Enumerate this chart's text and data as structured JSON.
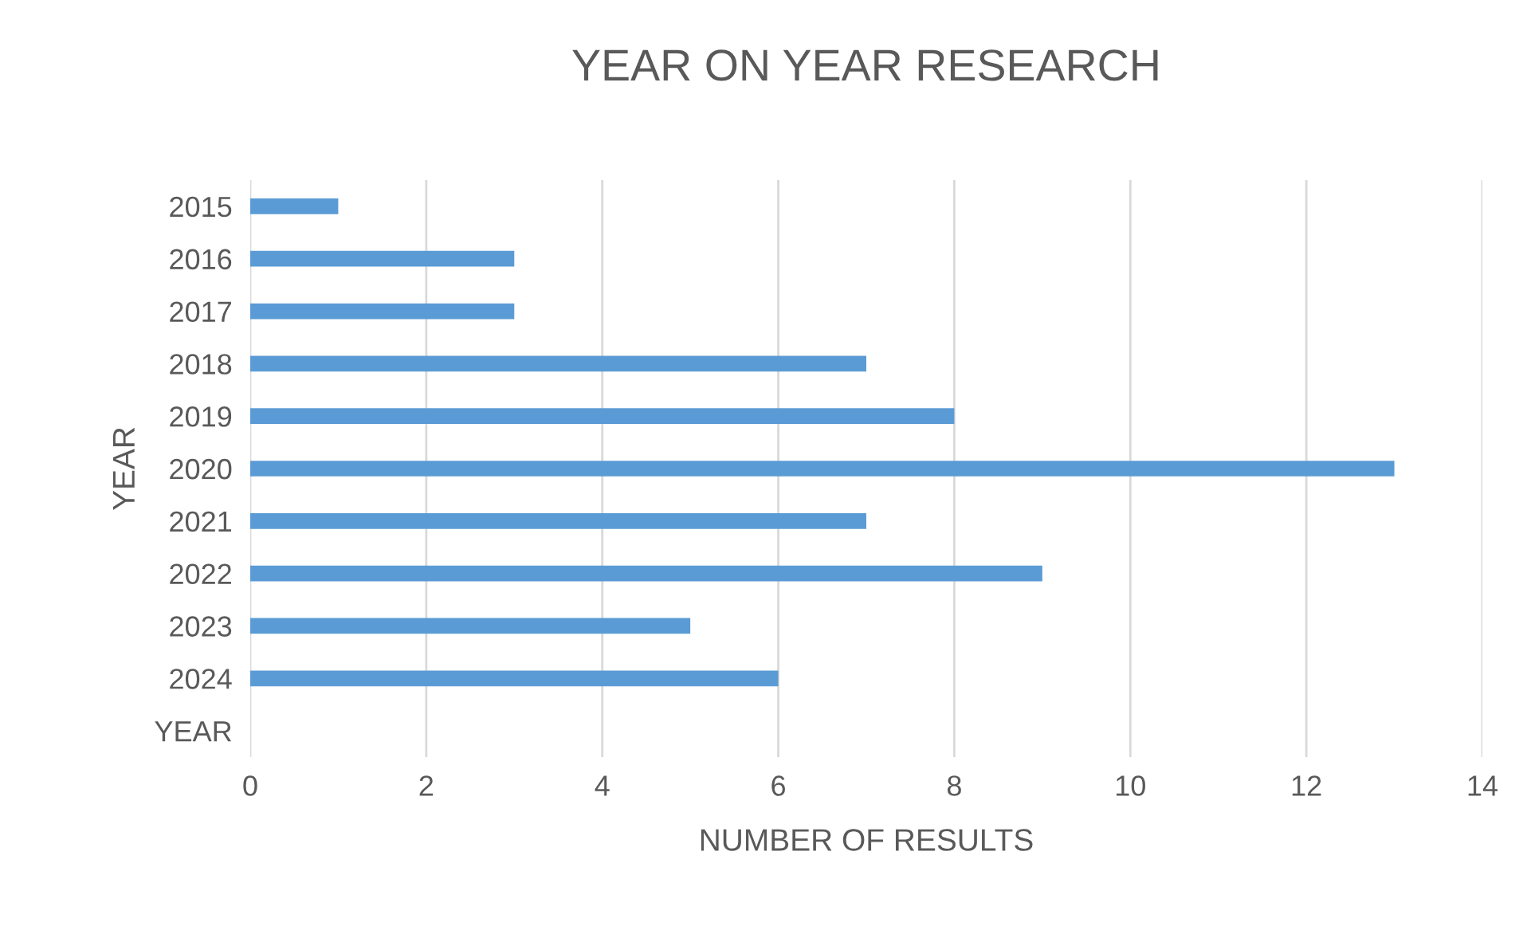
{
  "chart_data": {
    "type": "bar",
    "orientation": "horizontal",
    "title": "YEAR ON YEAR RESEARCH",
    "xlabel": "NUMBER OF RESULTS",
    "ylabel": "YEAR",
    "categories": [
      "2015",
      "2016",
      "2017",
      "2018",
      "2019",
      "2020",
      "2021",
      "2022",
      "2023",
      "2024",
      "YEAR"
    ],
    "values": [
      1,
      3,
      3,
      7,
      8,
      13,
      7,
      9,
      5,
      6,
      null
    ],
    "color": "#5b9bd5",
    "xlim": [
      0,
      14
    ],
    "xticks": [
      0,
      2,
      4,
      6,
      8,
      10,
      12,
      14
    ],
    "grid": "x",
    "legend": false
  }
}
